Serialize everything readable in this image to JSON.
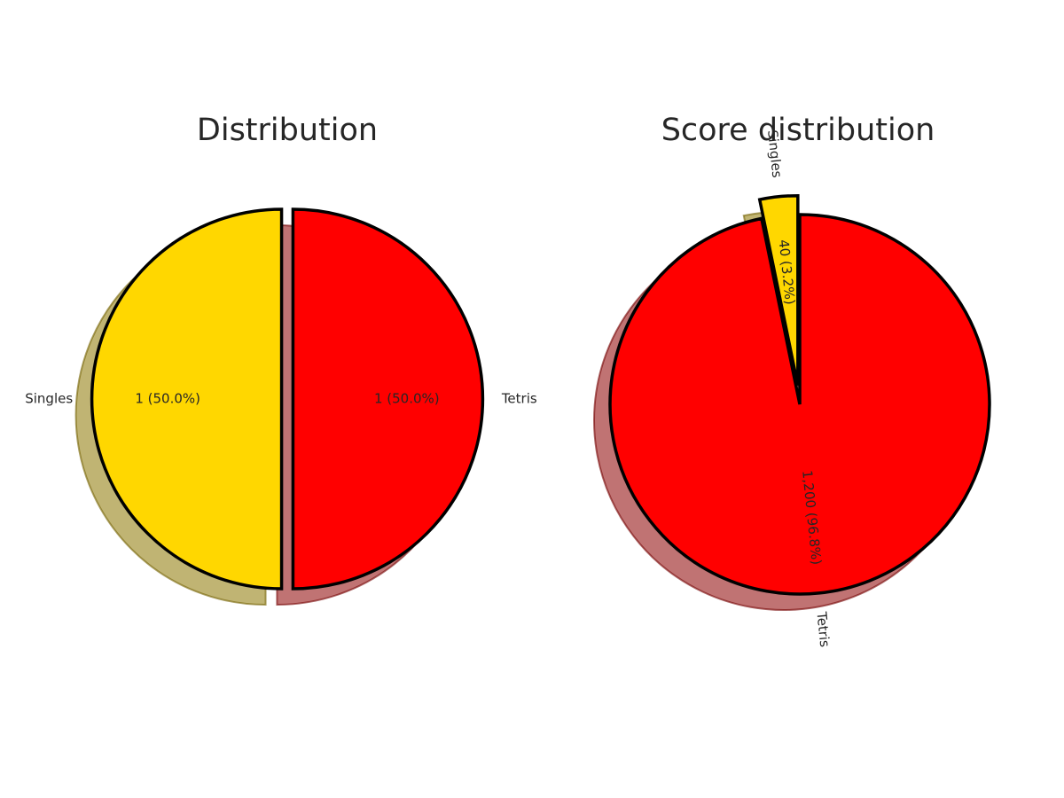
{
  "chart_data": [
    {
      "type": "pie",
      "title": "Distribution",
      "start_angle_deg": 90,
      "counterclock": true,
      "rotate_labels": false,
      "shadow": true,
      "slices": [
        {
          "label": "Singles",
          "value": 1,
          "display": "1 (50.0%)",
          "color": "#FFD700",
          "explode": true
        },
        {
          "label": "Tetris",
          "value": 1,
          "display": "1 (50.0%)",
          "color": "#FF0000",
          "explode": true
        }
      ]
    },
    {
      "type": "pie",
      "title": "Score distribution",
      "start_angle_deg": 90,
      "counterclock": true,
      "rotate_labels": true,
      "shadow": true,
      "slices": [
        {
          "label": "Singles",
          "value": 40,
          "display": "40 (3.2%)",
          "color": "#FFD700",
          "explode": true
        },
        {
          "label": "Tetris",
          "value": 1200,
          "display": "1,200 (96.8%)",
          "color": "#FF0000",
          "explode": false
        }
      ]
    }
  ]
}
